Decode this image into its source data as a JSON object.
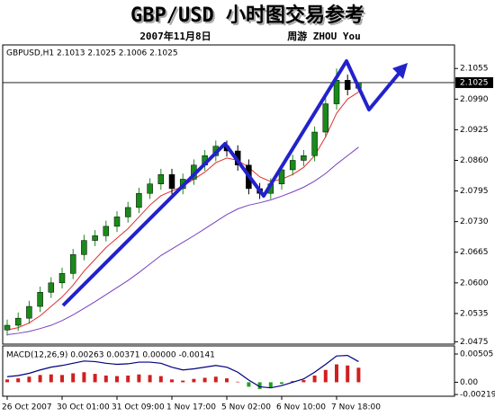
{
  "chart_data": {
    "type": "candlestick",
    "title": "GBP/USD 小时图交易参考",
    "date": "2007年11月8日",
    "author": "周游 ZHOU You",
    "header": "GBPUSD,H1  2.1013 2.1025 2.1006 2.1025",
    "current_price": 2.1025,
    "categories": [
      "26 Oct 2007",
      null,
      null,
      null,
      null,
      "30 Oct 01:00",
      null,
      null,
      null,
      null,
      "31 Oct 09:00",
      null,
      null,
      null,
      null,
      "1 Nov 17:00",
      null,
      null,
      null,
      null,
      "5 Nov 02:00",
      null,
      null,
      null,
      null,
      "6 Nov 10:00",
      null,
      null,
      null,
      null,
      "7 Nov 18:00",
      null,
      null
    ],
    "candles": {
      "open": [
        2.05,
        2.051,
        2.0525,
        2.055,
        2.058,
        2.06,
        2.062,
        2.066,
        2.069,
        2.07,
        2.072,
        2.074,
        2.076,
        2.079,
        2.081,
        2.083,
        2.08,
        2.082,
        2.085,
        2.087,
        2.089,
        2.088,
        2.085,
        2.08,
        2.079,
        2.081,
        2.084,
        2.086,
        2.087,
        2.092,
        2.098,
        2.103,
        2.1013
      ],
      "high": [
        2.0522,
        2.0537,
        2.0562,
        2.0592,
        2.0612,
        2.0632,
        2.0672,
        2.0702,
        2.0712,
        2.0732,
        2.0752,
        2.0772,
        2.0802,
        2.0822,
        2.0842,
        2.0842,
        2.0832,
        2.0862,
        2.0882,
        2.0902,
        2.0902,
        2.0892,
        2.0862,
        2.0812,
        2.0822,
        2.0852,
        2.0872,
        2.0882,
        2.0932,
        2.0992,
        2.1055,
        2.1042,
        2.1025
      ],
      "low": [
        2.0488,
        2.0498,
        2.0513,
        2.0538,
        2.0568,
        2.0588,
        2.0608,
        2.0648,
        2.0678,
        2.0688,
        2.0708,
        2.0728,
        2.0748,
        2.0778,
        2.0798,
        2.0788,
        2.0788,
        2.0808,
        2.0838,
        2.0858,
        2.0868,
        2.0838,
        2.0788,
        2.0778,
        2.0778,
        2.0798,
        2.0828,
        2.0848,
        2.0858,
        2.0908,
        2.0968,
        2.0998,
        2.1006
      ],
      "close": [
        2.051,
        2.0525,
        2.055,
        2.058,
        2.06,
        2.062,
        2.066,
        2.069,
        2.07,
        2.072,
        2.074,
        2.076,
        2.079,
        2.081,
        2.083,
        2.08,
        2.082,
        2.085,
        2.087,
        2.089,
        2.088,
        2.085,
        2.08,
        2.079,
        2.081,
        2.084,
        2.086,
        2.087,
        2.092,
        2.098,
        2.103,
        2.101,
        2.1025
      ],
      "up_color": "#1a8a1a",
      "down_color": "#000000"
    },
    "lines": [
      {
        "color": "#e03030",
        "values": [
          2.05,
          2.0505,
          2.0515,
          2.053,
          2.055,
          2.057,
          2.0595,
          2.0625,
          2.065,
          2.0675,
          2.0695,
          2.0715,
          2.074,
          2.0765,
          2.0785,
          2.0795,
          2.0805,
          2.082,
          2.0835,
          2.0855,
          2.0865,
          2.086,
          2.0845,
          2.0825,
          2.0815,
          2.082,
          2.083,
          2.0845,
          2.087,
          2.091,
          2.096,
          2.099,
          2.1005
        ]
      },
      {
        "color": "#7a3fc0",
        "values": [
          2.049,
          2.0493,
          2.0497,
          2.0503,
          2.051,
          2.052,
          2.0532,
          2.0546,
          2.056,
          2.0575,
          2.059,
          2.0605,
          2.0622,
          2.064,
          2.0658,
          2.0672,
          2.0686,
          2.07,
          2.0715,
          2.073,
          2.0745,
          2.0757,
          2.0765,
          2.077,
          2.0776,
          2.0784,
          2.0793,
          2.0803,
          2.0816,
          2.0832,
          2.0852,
          2.087,
          2.0888
        ]
      }
    ],
    "ylim": [
      2.047,
      2.1105
    ],
    "yticks": [
      2.1055,
      {
        "value": 2.099,
        "label": "2.0990"
      },
      2.0925,
      {
        "value": 2.086,
        "label": "2.0860"
      },
      2.0795,
      {
        "value": 2.073,
        "label": "2.0730"
      },
      2.0665,
      {
        "value": 2.06,
        "label": "2.0600"
      },
      2.0535,
      2.0475
    ],
    "macd": {
      "title": "MACD(12,26,9) 0.00263 0.00371 0.00000 -0.00141",
      "ylim": [
        -0.0025,
        0.0065
      ],
      "yticks": [
        0.00505,
        {
          "value": 0,
          "label": "0.00"
        },
        -0.00219
      ],
      "histogram": [
        0.0005,
        0.0007,
        0.001,
        0.0013,
        0.0014,
        0.0013,
        0.0016,
        0.0018,
        0.0015,
        0.0012,
        0.0011,
        0.0012,
        0.0014,
        0.0013,
        0.0011,
        0.0005,
        0.0003,
        0.0006,
        0.0008,
        0.001,
        0.0007,
        0.0001,
        -0.0008,
        -0.0012,
        -0.0009,
        -0.0003,
        0.0002,
        0.0004,
        0.0012,
        0.0022,
        0.0032,
        0.003,
        0.0026
      ],
      "line": [
        0.001,
        0.0012,
        0.0016,
        0.0022,
        0.0027,
        0.003,
        0.0034,
        0.0038,
        0.0037,
        0.0034,
        0.0032,
        0.0033,
        0.0036,
        0.0036,
        0.0034,
        0.0027,
        0.0022,
        0.0024,
        0.0027,
        0.003,
        0.0027,
        0.0018,
        0.0004,
        -0.0008,
        -0.001,
        -0.0006,
        0.0,
        0.0006,
        0.0018,
        0.0032,
        0.0047,
        0.0048,
        0.0037
      ],
      "positive_color": "#d02020",
      "negative_color": "#20a020",
      "line_color": "#000080"
    }
  }
}
